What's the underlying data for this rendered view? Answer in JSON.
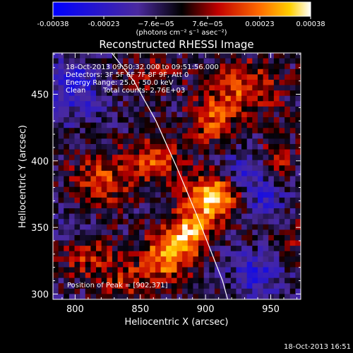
{
  "colorbar": {
    "tick_values": [
      -0.00038,
      -0.00023,
      -7.6e-05,
      7.6e-05,
      0.00023,
      0.00038
    ],
    "tick_labels": [
      "-0.00038",
      "-0.00023",
      "−7.6e−05",
      "7.6e−05",
      "0.00023",
      "0.00038"
    ],
    "unit_label": "(photons cm⁻² s⁻¹ asec⁻²)",
    "range": [
      -0.00038,
      0.00038
    ]
  },
  "chart_data": {
    "type": "heatmap",
    "title": "Reconstructed RHESSI Image",
    "xlabel": "Heliocentric X (arcsec)",
    "ylabel": "Heliocentric Y (arcsec)",
    "xlim": [
      783,
      973
    ],
    "ylim": [
      296,
      481
    ],
    "x_ticks": [
      800,
      850,
      900,
      950
    ],
    "y_ticks": [
      300,
      350,
      400,
      450
    ],
    "x_tick_labels": [
      "800",
      "850",
      "900",
      "950"
    ],
    "y_tick_labels": [
      "300",
      "350",
      "400",
      "450"
    ],
    "grid": false,
    "annotations": [
      "18-Oct-2013 09:50:32.000 to 09:51:56.000",
      "Detectors: 3F 5F 6F 7F 8F 9F, Att 0",
      "Energy Range: 25.0 - 50.0 keV",
      "Clean",
      "Total counts: 2.76E+03",
      "Position of Peak = [902,371]"
    ],
    "peak": [
      902,
      371
    ],
    "limb_curve": [
      [
        828,
        481
      ],
      [
        845,
        460
      ],
      [
        862,
        430
      ],
      [
        878,
        395
      ],
      [
        893,
        360
      ],
      [
        905,
        330
      ],
      [
        913,
        310
      ],
      [
        917,
        296
      ]
    ],
    "sources": [
      {
        "x": 905,
        "y": 372,
        "sx": 14,
        "sy": 12,
        "amp": 1.0
      },
      {
        "x": 888,
        "y": 345,
        "sx": 10,
        "sy": 12,
        "amp": 0.75
      },
      {
        "x": 870,
        "y": 330,
        "sx": 12,
        "sy": 14,
        "amp": 0.8
      },
      {
        "x": 860,
        "y": 400,
        "sx": 14,
        "sy": 12,
        "amp": 0.55
      },
      {
        "x": 820,
        "y": 385,
        "sx": 16,
        "sy": 14,
        "amp": 0.5
      },
      {
        "x": 930,
        "y": 455,
        "sx": 18,
        "sy": 14,
        "amp": 0.55
      },
      {
        "x": 905,
        "y": 430,
        "sx": 12,
        "sy": 14,
        "amp": 0.5
      },
      {
        "x": 810,
        "y": 330,
        "sx": 14,
        "sy": 12,
        "amp": 0.45
      },
      {
        "x": 840,
        "y": 310,
        "sx": 14,
        "sy": 10,
        "amp": 0.4
      },
      {
        "x": 860,
        "y": 465,
        "sx": 14,
        "sy": 10,
        "amp": 0.3
      },
      {
        "x": 955,
        "y": 400,
        "sx": 10,
        "sy": 12,
        "amp": 0.35
      },
      {
        "x": 965,
        "y": 340,
        "sx": 10,
        "sy": 12,
        "amp": 0.25
      },
      {
        "x": 940,
        "y": 315,
        "sx": 14,
        "sy": 12,
        "amp": -0.5
      },
      {
        "x": 945,
        "y": 375,
        "sx": 12,
        "sy": 14,
        "amp": -0.45
      },
      {
        "x": 800,
        "y": 455,
        "sx": 14,
        "sy": 16,
        "amp": -0.55
      },
      {
        "x": 800,
        "y": 350,
        "sx": 10,
        "sy": 10,
        "amp": -0.2
      },
      {
        "x": 925,
        "y": 395,
        "sx": 10,
        "sy": 10,
        "amp": -0.4
      }
    ]
  },
  "footer": {
    "timestamp": "18-Oct-2013 16:51"
  }
}
